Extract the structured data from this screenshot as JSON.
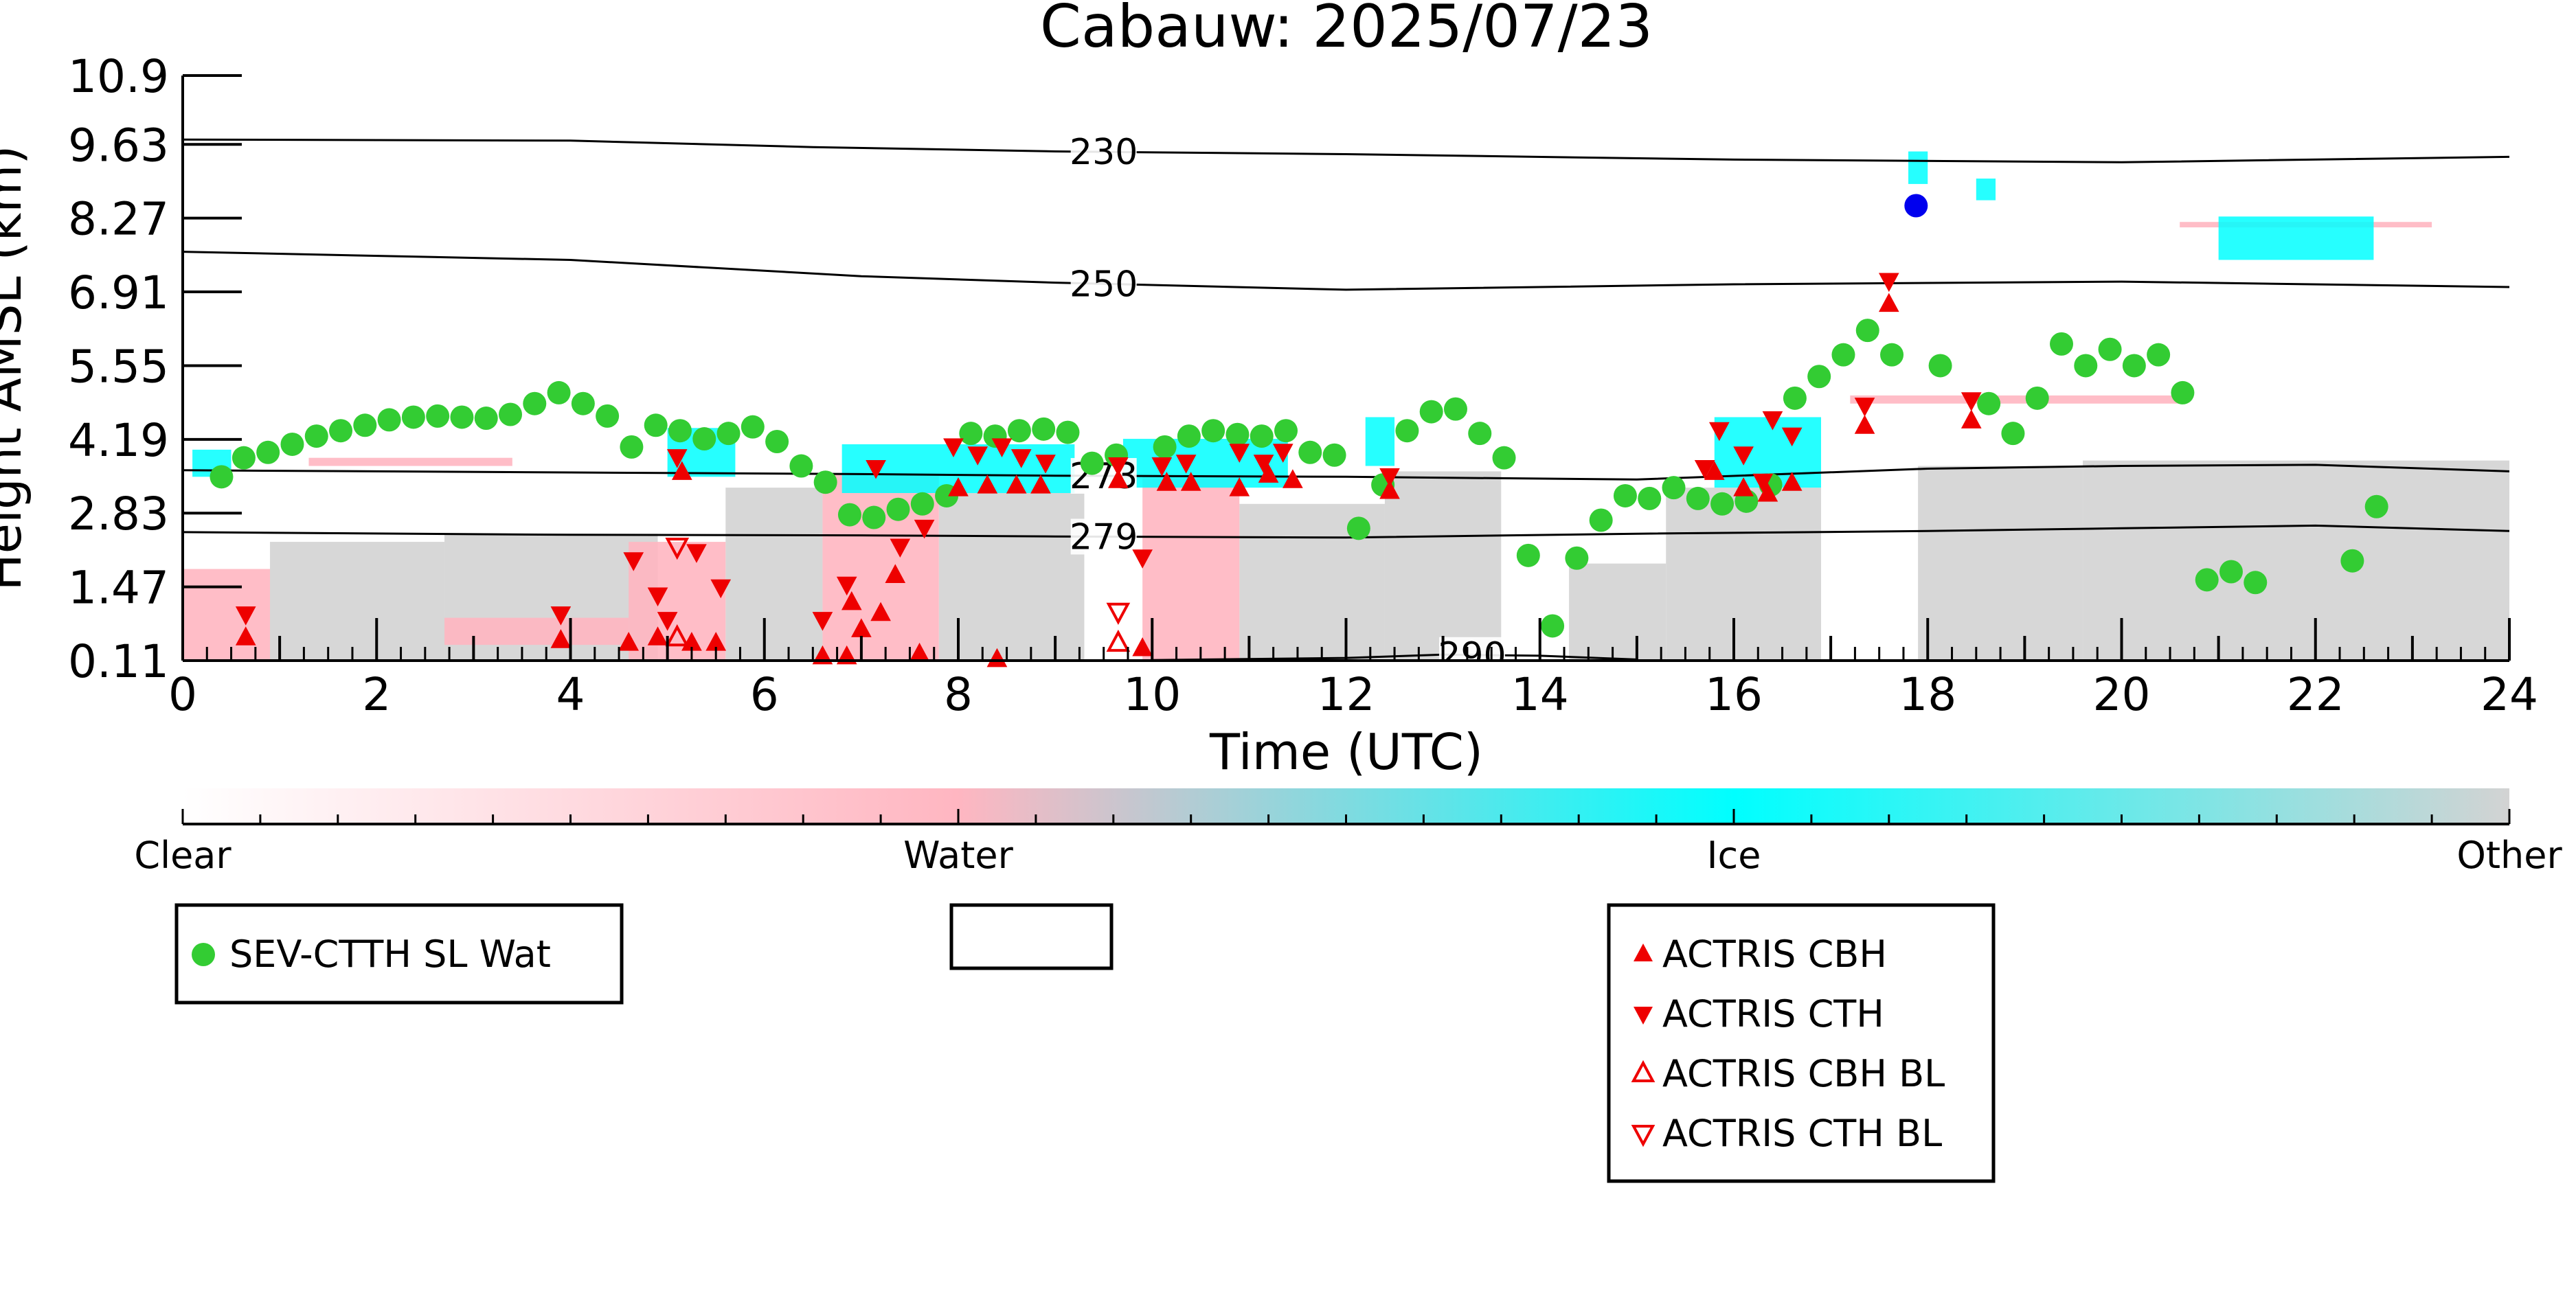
{
  "chart_data": {
    "type": "scatter",
    "title": "Cabauw: 2025/07/23",
    "xlabel": "Time (UTC)",
    "ylabel": "Height AMSL (km)",
    "xlim": [
      0,
      24
    ],
    "ylim": [
      0.11,
      10.9
    ],
    "xticks": [
      "0",
      "2",
      "4",
      "6",
      "8",
      "10",
      "12",
      "14",
      "16",
      "18",
      "20",
      "22",
      "24"
    ],
    "yticks": [
      "0.11",
      "1.47",
      "2.83",
      "4.19",
      "5.55",
      "6.91",
      "8.27",
      "9.63",
      "10.9"
    ],
    "grid": false,
    "isotherms": [
      {
        "label": "230",
        "points": [
          [
            0,
            9.72
          ],
          [
            4,
            9.7
          ],
          [
            6.5,
            9.58
          ],
          [
            9,
            9.5
          ],
          [
            12,
            9.45
          ],
          [
            16,
            9.35
          ],
          [
            20,
            9.3
          ],
          [
            24,
            9.4
          ]
        ],
        "label_x": 9.5
      },
      {
        "label": "250",
        "points": [
          [
            0,
            7.65
          ],
          [
            4,
            7.5
          ],
          [
            7,
            7.2
          ],
          [
            9,
            7.08
          ],
          [
            12,
            6.95
          ],
          [
            16,
            7.05
          ],
          [
            20,
            7.1
          ],
          [
            24,
            7.0
          ]
        ],
        "label_x": 9.5
      },
      {
        "label": "273",
        "points": [
          [
            0,
            3.62
          ],
          [
            4,
            3.58
          ],
          [
            7,
            3.55
          ],
          [
            9,
            3.52
          ],
          [
            12,
            3.5
          ],
          [
            15,
            3.45
          ],
          [
            18,
            3.65
          ],
          [
            20,
            3.7
          ],
          [
            22,
            3.72
          ],
          [
            24,
            3.6
          ]
        ],
        "label_x": 9.5
      },
      {
        "label": "279",
        "points": [
          [
            0,
            2.48
          ],
          [
            4,
            2.43
          ],
          [
            7,
            2.42
          ],
          [
            9,
            2.4
          ],
          [
            12,
            2.38
          ],
          [
            15,
            2.45
          ],
          [
            18,
            2.5
          ],
          [
            20,
            2.55
          ],
          [
            22,
            2.6
          ],
          [
            24,
            2.5
          ]
        ],
        "label_x": 9.5
      },
      {
        "label": "290",
        "points": [
          [
            10,
            0.12
          ],
          [
            12,
            0.16
          ],
          [
            13,
            0.22
          ],
          [
            14,
            0.2
          ],
          [
            15,
            0.13
          ]
        ],
        "label_x": 13.3
      }
    ],
    "colorbar": {
      "labels": [
        "Clear",
        "Water",
        "Ice",
        "Other"
      ],
      "colors": [
        "#ffffff",
        "#ffb6c1",
        "#00ffff",
        "#d3d3d3"
      ]
    },
    "legends": [
      {
        "entries": [
          {
            "label": "SEV-CTTH SL Wat",
            "marker": "circle",
            "color": "#33cc33"
          }
        ]
      },
      {
        "entries": []
      },
      {
        "entries": [
          {
            "label": "ACTRIS CBH",
            "marker": "triangle-up",
            "color": "#ee0000"
          },
          {
            "label": "ACTRIS CTH",
            "marker": "triangle-down",
            "color": "#ee0000"
          },
          {
            "label": "ACTRIS CBH BL",
            "marker": "triangle-up-open",
            "color": "#ee0000"
          },
          {
            "label": "ACTRIS CTH BL",
            "marker": "triangle-down-open",
            "color": "#ee0000"
          }
        ]
      }
    ],
    "series": [
      {
        "name": "SEV-CTTH SL Wat",
        "marker": "circle",
        "color": "#33cc33",
        "points": [
          [
            0.4,
            3.5
          ],
          [
            0.63,
            3.85
          ],
          [
            0.88,
            3.95
          ],
          [
            1.13,
            4.1
          ],
          [
            1.38,
            4.25
          ],
          [
            1.63,
            4.35
          ],
          [
            1.88,
            4.45
          ],
          [
            2.13,
            4.55
          ],
          [
            2.38,
            4.6
          ],
          [
            2.63,
            4.62
          ],
          [
            2.88,
            4.6
          ],
          [
            3.13,
            4.58
          ],
          [
            3.38,
            4.65
          ],
          [
            3.63,
            4.85
          ],
          [
            3.88,
            5.05
          ],
          [
            4.13,
            4.85
          ],
          [
            4.38,
            4.62
          ],
          [
            4.63,
            4.05
          ],
          [
            4.88,
            4.45
          ],
          [
            5.13,
            4.35
          ],
          [
            5.38,
            4.2
          ],
          [
            5.63,
            4.3
          ],
          [
            5.88,
            4.42
          ],
          [
            6.13,
            4.15
          ],
          [
            6.38,
            3.7
          ],
          [
            6.63,
            3.4
          ],
          [
            6.88,
            2.8
          ],
          [
            7.13,
            2.75
          ],
          [
            7.38,
            2.9
          ],
          [
            7.63,
            3.0
          ],
          [
            7.88,
            3.15
          ],
          [
            8.13,
            4.3
          ],
          [
            8.38,
            4.25
          ],
          [
            8.63,
            4.35
          ],
          [
            8.88,
            4.38
          ],
          [
            9.13,
            4.32
          ],
          [
            9.38,
            3.75
          ],
          [
            9.63,
            3.9
          ],
          [
            10.13,
            4.05
          ],
          [
            10.38,
            4.25
          ],
          [
            10.63,
            4.35
          ],
          [
            10.88,
            4.28
          ],
          [
            11.13,
            4.25
          ],
          [
            11.38,
            4.35
          ],
          [
            11.63,
            3.95
          ],
          [
            11.88,
            3.9
          ],
          [
            12.13,
            2.55
          ],
          [
            12.38,
            3.35
          ],
          [
            12.63,
            4.35
          ],
          [
            12.88,
            4.7
          ],
          [
            13.13,
            4.75
          ],
          [
            13.38,
            4.3
          ],
          [
            13.63,
            3.85
          ],
          [
            13.88,
            2.05
          ],
          [
            14.13,
            0.75
          ],
          [
            14.38,
            2.0
          ],
          [
            14.63,
            2.7
          ],
          [
            14.88,
            3.15
          ],
          [
            15.13,
            3.1
          ],
          [
            15.38,
            3.3
          ],
          [
            15.63,
            3.1
          ],
          [
            15.88,
            3.0
          ],
          [
            16.13,
            3.05
          ],
          [
            16.38,
            3.35
          ],
          [
            16.63,
            4.95
          ],
          [
            16.88,
            5.35
          ],
          [
            17.13,
            5.75
          ],
          [
            17.38,
            6.2
          ],
          [
            17.63,
            5.75
          ],
          [
            18.13,
            5.55
          ],
          [
            18.63,
            4.85
          ],
          [
            18.88,
            4.3
          ],
          [
            19.13,
            4.95
          ],
          [
            19.38,
            5.95
          ],
          [
            19.63,
            5.55
          ],
          [
            19.88,
            5.85
          ],
          [
            20.13,
            5.55
          ],
          [
            20.38,
            5.75
          ],
          [
            20.63,
            5.05
          ],
          [
            20.88,
            1.6
          ],
          [
            21.13,
            1.75
          ],
          [
            21.38,
            1.55
          ],
          [
            22.38,
            1.95
          ],
          [
            22.63,
            2.95
          ]
        ]
      },
      {
        "name": "",
        "marker": "circle",
        "color": "#0000ee",
        "points": [
          [
            17.88,
            8.5
          ]
        ]
      },
      {
        "name": "ACTRIS CBH",
        "marker": "triangle-up",
        "color": "#ee0000",
        "points": [
          [
            0.65,
            0.55
          ],
          [
            3.9,
            0.5
          ],
          [
            4.6,
            0.45
          ],
          [
            4.9,
            0.55
          ],
          [
            5.15,
            3.6
          ],
          [
            5.25,
            0.45
          ],
          [
            5.5,
            0.45
          ],
          [
            6.6,
            0.2
          ],
          [
            6.85,
            0.2
          ],
          [
            6.9,
            1.2
          ],
          [
            7.0,
            0.7
          ],
          [
            7.2,
            1.0
          ],
          [
            7.35,
            1.7
          ],
          [
            7.6,
            0.25
          ],
          [
            8.0,
            3.3
          ],
          [
            8.4,
            0.15
          ],
          [
            8.3,
            3.35
          ],
          [
            8.6,
            3.35
          ],
          [
            8.85,
            3.35
          ],
          [
            9.65,
            3.45
          ],
          [
            9.9,
            0.35
          ],
          [
            10.15,
            3.4
          ],
          [
            10.4,
            3.4
          ],
          [
            10.9,
            3.3
          ],
          [
            11.2,
            3.55
          ],
          [
            11.45,
            3.45
          ],
          [
            12.45,
            3.25
          ],
          [
            15.8,
            3.6
          ],
          [
            16.1,
            3.3
          ],
          [
            16.35,
            3.2
          ],
          [
            16.6,
            3.4
          ],
          [
            17.35,
            4.45
          ],
          [
            17.6,
            6.7
          ],
          [
            18.45,
            4.55
          ]
        ]
      },
      {
        "name": "ACTRIS CTH",
        "marker": "triangle-down",
        "color": "#ee0000",
        "points": [
          [
            0.65,
            0.95
          ],
          [
            3.9,
            0.95
          ],
          [
            4.65,
            1.95
          ],
          [
            4.9,
            1.3
          ],
          [
            5.0,
            0.85
          ],
          [
            5.1,
            3.85
          ],
          [
            5.3,
            2.1
          ],
          [
            5.55,
            1.45
          ],
          [
            6.6,
            0.85
          ],
          [
            6.85,
            1.5
          ],
          [
            7.15,
            3.65
          ],
          [
            7.4,
            2.2
          ],
          [
            7.65,
            2.55
          ],
          [
            7.95,
            4.05
          ],
          [
            8.2,
            3.9
          ],
          [
            8.45,
            4.05
          ],
          [
            8.65,
            3.85
          ],
          [
            8.9,
            3.75
          ],
          [
            9.65,
            3.7
          ],
          [
            9.9,
            2.0
          ],
          [
            10.1,
            3.7
          ],
          [
            10.35,
            3.75
          ],
          [
            10.9,
            3.95
          ],
          [
            11.15,
            3.75
          ],
          [
            11.35,
            3.95
          ],
          [
            12.45,
            3.5
          ],
          [
            15.7,
            3.65
          ],
          [
            15.85,
            4.35
          ],
          [
            16.1,
            3.9
          ],
          [
            16.3,
            3.4
          ],
          [
            16.4,
            4.55
          ],
          [
            16.6,
            4.25
          ],
          [
            17.35,
            4.8
          ],
          [
            17.6,
            7.1
          ],
          [
            18.45,
            4.9
          ]
        ]
      },
      {
        "name": "ACTRIS CBH BL",
        "marker": "triangle-up-open",
        "color": "#ee0000",
        "points": [
          [
            5.1,
            0.55
          ],
          [
            9.65,
            0.45
          ]
        ]
      },
      {
        "name": "ACTRIS CTH BL",
        "marker": "triangle-down-open",
        "color": "#ee0000",
        "points": [
          [
            5.1,
            2.2
          ],
          [
            9.65,
            1.0
          ]
        ]
      }
    ],
    "cloud_regions": [
      {
        "phase": "Other",
        "color": "#d3d3d3",
        "x": [
          2.7,
          4.9
        ],
        "y": [
          0.11,
          2.45
        ]
      },
      {
        "phase": "Other",
        "color": "#d3d3d3",
        "x": [
          5.6,
          6.6
        ],
        "y": [
          0.11,
          3.3
        ]
      },
      {
        "phase": "Other",
        "color": "#d3d3d3",
        "x": [
          7.8,
          9.3
        ],
        "y": [
          0.11,
          3.2
        ]
      },
      {
        "phase": "Other",
        "color": "#d3d3d3",
        "x": [
          10.9,
          12.4
        ],
        "y": [
          0.11,
          3.0
        ]
      },
      {
        "phase": "Other",
        "color": "#d3d3d3",
        "x": [
          12.4,
          13.6
        ],
        "y": [
          0.11,
          3.6
        ]
      },
      {
        "phase": "Other",
        "color": "#d3d3d3",
        "x": [
          14.3,
          15.3
        ],
        "y": [
          0.11,
          1.9
        ]
      },
      {
        "phase": "Other",
        "color": "#d3d3d3",
        "x": [
          15.3,
          16.9
        ],
        "y": [
          0.11,
          3.3
        ]
      },
      {
        "phase": "Other",
        "color": "#d3d3d3",
        "x": [
          17.9,
          19.6
        ],
        "y": [
          0.11,
          3.7
        ]
      },
      {
        "phase": "Other",
        "color": "#d3d3d3",
        "x": [
          19.6,
          24.0
        ],
        "y": [
          0.11,
          3.8
        ]
      },
      {
        "phase": "Other",
        "color": "#d3d3d3",
        "x": [
          0.9,
          2.7
        ],
        "y": [
          0.11,
          2.3
        ]
      },
      {
        "phase": "Water",
        "color": "#ffb6c1",
        "x": [
          0.0,
          0.9
        ],
        "y": [
          0.11,
          1.8
        ]
      },
      {
        "phase": "Water",
        "color": "#ffb6c1",
        "x": [
          4.6,
          5.6
        ],
        "y": [
          0.11,
          2.3
        ]
      },
      {
        "phase": "Water",
        "color": "#ffb6c1",
        "x": [
          6.6,
          7.8
        ],
        "y": [
          0.11,
          3.55
        ]
      },
      {
        "phase": "Water",
        "color": "#ffb6c1",
        "x": [
          9.9,
          10.9
        ],
        "y": [
          0.11,
          3.5
        ]
      },
      {
        "phase": "Water",
        "color": "#ffb6c1",
        "x": [
          2.7,
          4.6
        ],
        "y": [
          0.4,
          0.9
        ]
      },
      {
        "phase": "Water",
        "color": "#ffb6c1",
        "x": [
          1.3,
          3.4
        ],
        "y": [
          3.7,
          3.85
        ]
      },
      {
        "phase": "Water",
        "color": "#ffb6c1",
        "x": [
          17.2,
          20.6
        ],
        "y": [
          4.85,
          5.0
        ]
      },
      {
        "phase": "Water",
        "color": "#ffb6c1",
        "x": [
          20.6,
          23.2
        ],
        "y": [
          8.1,
          8.2
        ]
      },
      {
        "phase": "Ice",
        "color": "#00ffff",
        "x": [
          5.0,
          5.7
        ],
        "y": [
          3.5,
          4.4
        ]
      },
      {
        "phase": "Ice",
        "color": "#00ffff",
        "x": [
          6.8,
          9.2
        ],
        "y": [
          3.2,
          4.1
        ]
      },
      {
        "phase": "Ice",
        "color": "#00ffff",
        "x": [
          9.7,
          11.4
        ],
        "y": [
          3.3,
          4.2
        ]
      },
      {
        "phase": "Ice",
        "color": "#00ffff",
        "x": [
          12.2,
          12.5
        ],
        "y": [
          3.7,
          4.6
        ]
      },
      {
        "phase": "Ice",
        "color": "#00ffff",
        "x": [
          15.8,
          16.9
        ],
        "y": [
          3.3,
          4.6
        ]
      },
      {
        "phase": "Ice",
        "color": "#00ffff",
        "x": [
          17.8,
          18.0
        ],
        "y": [
          8.9,
          9.5
        ]
      },
      {
        "phase": "Ice",
        "color": "#00ffff",
        "x": [
          18.5,
          18.7
        ],
        "y": [
          8.6,
          9.0
        ]
      },
      {
        "phase": "Ice",
        "color": "#00ffff",
        "x": [
          21.0,
          22.6
        ],
        "y": [
          7.5,
          8.3
        ]
      },
      {
        "phase": "Ice",
        "color": "#00ffff",
        "x": [
          0.1,
          0.5
        ],
        "y": [
          3.5,
          4.0
        ]
      }
    ]
  }
}
